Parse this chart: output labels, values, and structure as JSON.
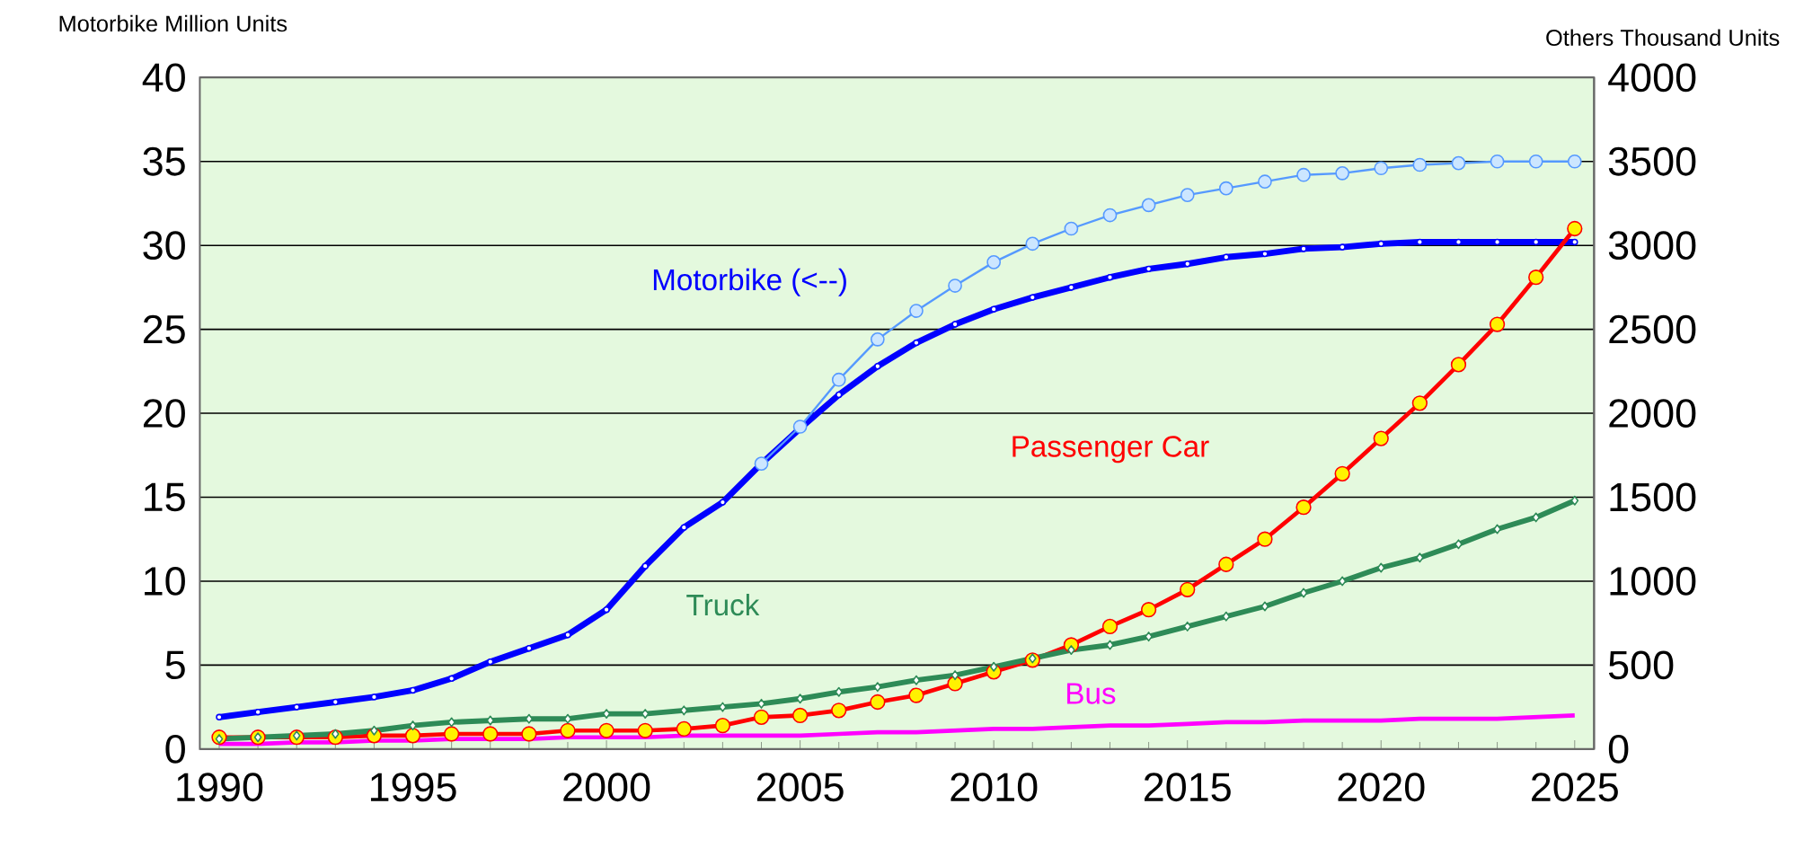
{
  "chart_data": {
    "type": "line",
    "ylabel": "Motorbike Million Units",
    "y2label": "Others Thousand Units",
    "x": [
      1990,
      1991,
      1992,
      1993,
      1994,
      1995,
      1996,
      1997,
      1998,
      1999,
      2000,
      2001,
      2002,
      2003,
      2004,
      2005,
      2006,
      2007,
      2008,
      2009,
      2010,
      2011,
      2012,
      2013,
      2014,
      2015,
      2016,
      2017,
      2018,
      2019,
      2020,
      2021,
      2022,
      2023,
      2024,
      2025
    ],
    "xlim": [
      1989.5,
      2025.5
    ],
    "xticks": [
      1990,
      1995,
      2000,
      2005,
      2010,
      2015,
      2020,
      2025
    ],
    "ylim": [
      0,
      40
    ],
    "yticks": [
      0,
      5,
      10,
      15,
      20,
      25,
      30,
      35,
      40
    ],
    "y2lim": [
      0,
      4000
    ],
    "y2ticks": [
      0,
      500,
      1000,
      1500,
      2000,
      2500,
      3000,
      3500,
      4000
    ],
    "grid": "y",
    "legend": false,
    "series": [
      {
        "name": "Motorbike (<--)",
        "color": "#0000ff",
        "marker": "circle",
        "values": [
          1.9,
          2.2,
          2.5,
          2.8,
          3.1,
          3.5,
          4.2,
          5.2,
          6.0,
          6.8,
          8.3,
          10.9,
          13.2,
          14.7,
          17.0,
          19.1,
          21.1,
          22.8,
          24.2,
          25.3,
          26.2,
          26.9,
          27.5,
          28.1,
          28.6,
          28.9,
          29.3,
          29.5,
          29.8,
          29.9,
          30.1,
          30.2,
          30.2,
          30.2,
          30.2,
          30.2
        ]
      },
      {
        "color": "#5599ff",
        "marker": "circle",
        "x": [
          2004,
          2005,
          2006,
          2007,
          2008,
          2009,
          2010,
          2011,
          2012,
          2013,
          2014,
          2015,
          2016,
          2017,
          2018,
          2019,
          2020,
          2021,
          2022,
          2023,
          2024,
          2025
        ],
        "values": [
          17.0,
          19.2,
          22.0,
          24.4,
          26.1,
          27.6,
          29.0,
          30.1,
          31.0,
          31.8,
          32.4,
          33.0,
          33.4,
          33.8,
          34.2,
          34.3,
          34.6,
          34.8,
          34.9,
          35.0,
          35.0,
          35.0
        ]
      },
      {
        "name": "Passenger Car",
        "color": "#ff0000",
        "marker": "circle",
        "axis": "y2",
        "values": [
          70,
          70,
          70,
          70,
          80,
          80,
          90,
          90,
          90,
          110,
          110,
          110,
          120,
          140,
          190,
          200,
          230,
          280,
          320,
          390,
          460,
          530,
          620,
          730,
          830,
          950,
          1100,
          1250,
          1440,
          1640,
          1850,
          2060,
          2290,
          2530,
          2810,
          3100
        ]
      },
      {
        "name": "Truck",
        "color": "#2e8b57",
        "marker": "diamond",
        "axis": "y2",
        "values": [
          60,
          70,
          80,
          90,
          110,
          140,
          160,
          170,
          180,
          180,
          210,
          210,
          230,
          250,
          270,
          300,
          340,
          370,
          410,
          440,
          490,
          540,
          590,
          620,
          670,
          730,
          790,
          850,
          930,
          1000,
          1080,
          1140,
          1220,
          1310,
          1380,
          1480
        ]
      },
      {
        "name": "Bus",
        "color": "#ff00ff",
        "marker": "none",
        "axis": "y2",
        "values": [
          30,
          30,
          40,
          40,
          50,
          50,
          60,
          60,
          60,
          70,
          70,
          70,
          80,
          80,
          80,
          80,
          90,
          100,
          100,
          110,
          120,
          120,
          130,
          140,
          140,
          150,
          160,
          160,
          170,
          170,
          170,
          180,
          180,
          180,
          190,
          200
        ]
      }
    ]
  }
}
